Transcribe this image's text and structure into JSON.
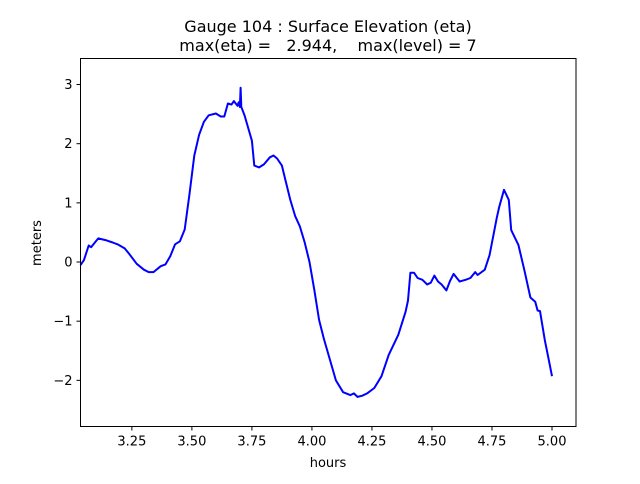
{
  "chart_data": {
    "type": "line",
    "title_line1": "Gauge 104 : Surface Elevation (eta)",
    "title_line2": "max(eta) =   2.944,    max(level) = 7",
    "xlabel": "hours",
    "ylabel": "meters",
    "xlim": [
      3.036,
      5.1
    ],
    "ylim": [
      -2.78,
      3.44
    ],
    "xticks": [
      3.25,
      3.5,
      3.75,
      4.0,
      4.25,
      4.5,
      4.75,
      5.0
    ],
    "xtick_labels": [
      "3.25",
      "3.50",
      "3.75",
      "4.00",
      "4.25",
      "4.50",
      "4.75",
      "5.00"
    ],
    "yticks": [
      -2,
      -1,
      0,
      1,
      2,
      3
    ],
    "ytick_labels": [
      "−2",
      "−1",
      "0",
      "1",
      "2",
      "3"
    ],
    "grid": false,
    "series": [
      {
        "name": "eta",
        "color": "#0000ff",
        "x": [
          3.036,
          3.05,
          3.07,
          3.08,
          3.1,
          3.11,
          3.14,
          3.17,
          3.19,
          3.22,
          3.24,
          3.27,
          3.3,
          3.32,
          3.34,
          3.37,
          3.39,
          3.41,
          3.43,
          3.45,
          3.47,
          3.49,
          3.51,
          3.53,
          3.55,
          3.57,
          3.6,
          3.62,
          3.635,
          3.65,
          3.665,
          3.675,
          3.69,
          3.695,
          3.7,
          3.703,
          3.706,
          3.708,
          3.72,
          3.75,
          3.76,
          3.78,
          3.8,
          3.825,
          3.84,
          3.855,
          3.875,
          3.89,
          3.91,
          3.93,
          3.95,
          3.97,
          3.99,
          4.01,
          4.03,
          4.05,
          4.075,
          4.1,
          4.13,
          4.16,
          4.175,
          4.19,
          4.21,
          4.23,
          4.26,
          4.29,
          4.32,
          4.36,
          4.39,
          4.4,
          4.41,
          4.425,
          4.44,
          4.46,
          4.48,
          4.495,
          4.51,
          4.525,
          4.54,
          4.56,
          4.575,
          4.59,
          4.615,
          4.64,
          4.66,
          4.68,
          4.69,
          4.72,
          4.74,
          4.77,
          4.78,
          4.8,
          4.82,
          4.83,
          4.86,
          4.885,
          4.91,
          4.93,
          4.94,
          4.95,
          4.97,
          4.985,
          5.0
        ],
        "y": [
          -0.05,
          0.03,
          0.28,
          0.25,
          0.35,
          0.4,
          0.37,
          0.33,
          0.3,
          0.23,
          0.13,
          -0.03,
          -0.13,
          -0.17,
          -0.17,
          -0.07,
          -0.04,
          0.1,
          0.3,
          0.35,
          0.55,
          1.15,
          1.8,
          2.15,
          2.37,
          2.48,
          2.51,
          2.46,
          2.46,
          2.68,
          2.66,
          2.72,
          2.64,
          2.7,
          2.62,
          2.944,
          2.62,
          2.6,
          2.47,
          2.05,
          1.63,
          1.6,
          1.65,
          1.77,
          1.8,
          1.75,
          1.63,
          1.38,
          1.05,
          0.78,
          0.6,
          0.33,
          0.0,
          -0.47,
          -0.98,
          -1.3,
          -1.65,
          -2.0,
          -2.2,
          -2.25,
          -2.22,
          -2.28,
          -2.26,
          -2.22,
          -2.13,
          -1.93,
          -1.57,
          -1.23,
          -0.84,
          -0.65,
          -0.18,
          -0.18,
          -0.27,
          -0.3,
          -0.38,
          -0.35,
          -0.23,
          -0.33,
          -0.38,
          -0.48,
          -0.32,
          -0.2,
          -0.33,
          -0.3,
          -0.27,
          -0.17,
          -0.22,
          -0.13,
          0.12,
          0.75,
          0.93,
          1.22,
          1.05,
          0.54,
          0.29,
          -0.14,
          -0.6,
          -0.67,
          -0.82,
          -0.83,
          -1.32,
          -1.62,
          -1.93
        ]
      }
    ]
  }
}
